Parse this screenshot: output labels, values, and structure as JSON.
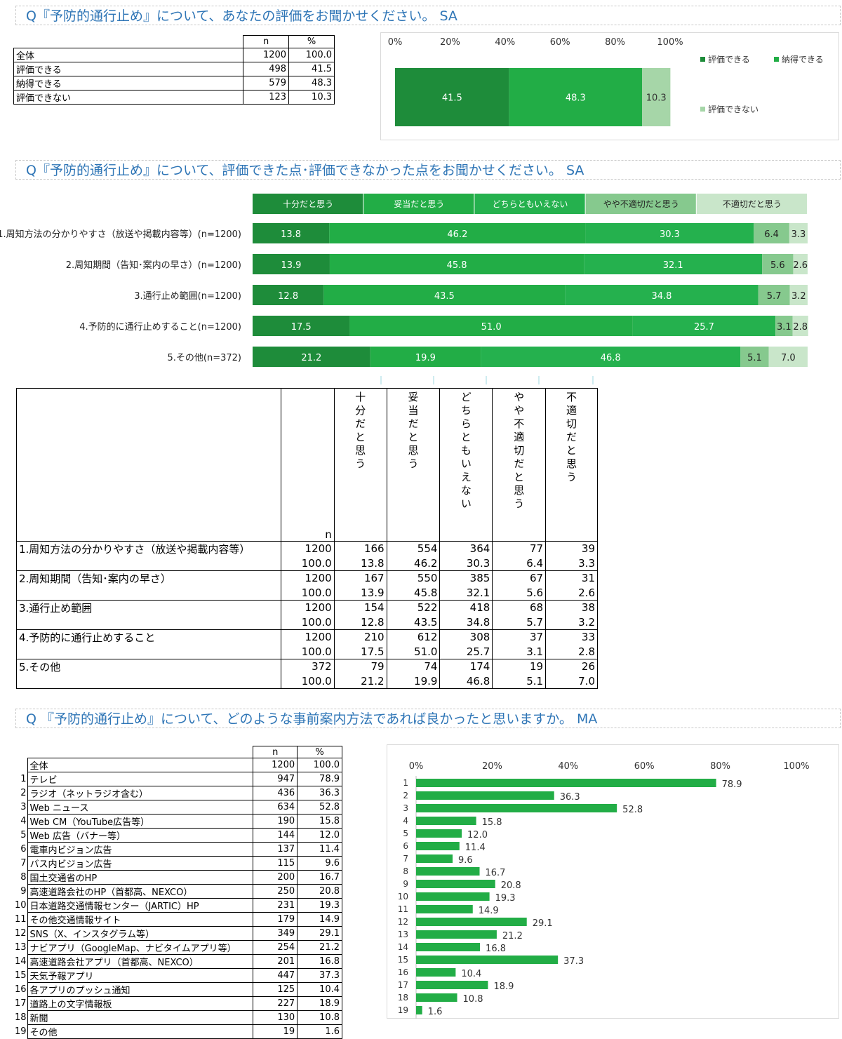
{
  "section1": {
    "title": "Q『予防的通行止め』について、あなたの評価をお聞かせください。 SA",
    "table": {
      "headers": [
        "n",
        "%"
      ],
      "rows": [
        {
          "label": "全体",
          "n": "1200",
          "pct": "100.0"
        },
        {
          "label": "評価できる",
          "n": "498",
          "pct": "41.5"
        },
        {
          "label": "納得できる",
          "n": "579",
          "pct": "48.3"
        },
        {
          "label": "評価できない",
          "n": "123",
          "pct": "10.3"
        }
      ]
    }
  },
  "section2": {
    "title": "Q『予防的通行止め』について、評価できた点･評価できなかった点をお聞かせください。 SA",
    "table": {
      "n_header": "n",
      "col_headers": [
        "十分だと思う",
        "妥当だと思う",
        "どちらともいえない",
        "やや不適切だと思う",
        "不適切だと思う"
      ],
      "rows": [
        {
          "label": "1.周知方法の分かりやすさ（放送や掲載内容等）",
          "n": "1200",
          "counts": [
            "166",
            "554",
            "364",
            "77",
            "39"
          ],
          "pct_total": "100.0",
          "pcts": [
            "13.8",
            "46.2",
            "30.3",
            "6.4",
            "3.3"
          ]
        },
        {
          "label": "2.周知期間（告知･案内の早さ）",
          "n": "1200",
          "counts": [
            "167",
            "550",
            "385",
            "67",
            "31"
          ],
          "pct_total": "100.0",
          "pcts": [
            "13.9",
            "45.8",
            "32.1",
            "5.6",
            "2.6"
          ]
        },
        {
          "label": "3.通行止め範囲",
          "n": "1200",
          "counts": [
            "154",
            "522",
            "418",
            "68",
            "38"
          ],
          "pct_total": "100.0",
          "pcts": [
            "12.8",
            "43.5",
            "34.8",
            "5.7",
            "3.2"
          ]
        },
        {
          "label": "4.予防的に通行止めすること",
          "n": "1200",
          "counts": [
            "210",
            "612",
            "308",
            "37",
            "33"
          ],
          "pct_total": "100.0",
          "pcts": [
            "17.5",
            "51.0",
            "25.7",
            "3.1",
            "2.8"
          ]
        },
        {
          "label": "5.その他",
          "n": "372",
          "counts": [
            "79",
            "74",
            "174",
            "19",
            "26"
          ],
          "pct_total": "100.0",
          "pcts": [
            "21.2",
            "19.9",
            "46.8",
            "5.1",
            "7.0"
          ]
        }
      ]
    }
  },
  "section3": {
    "title": "Q 『予防的通行止め』について、どのような事前案内方法であれば良かったと思いますか。 MA",
    "table": {
      "headers": [
        "n",
        "%"
      ],
      "total": {
        "label": "全体",
        "n": "1200",
        "pct": "100.0"
      },
      "rows": [
        {
          "no": "1",
          "label": "テレビ",
          "n": "947",
          "pct": "78.9"
        },
        {
          "no": "2",
          "label": "ラジオ（ネットラジオ含む）",
          "n": "436",
          "pct": "36.3"
        },
        {
          "no": "3",
          "label": "Web ニュース",
          "n": "634",
          "pct": "52.8"
        },
        {
          "no": "4",
          "label": "Web CM（YouTube広告等）",
          "n": "190",
          "pct": "15.8"
        },
        {
          "no": "5",
          "label": "Web 広告（バナー等）",
          "n": "144",
          "pct": "12.0"
        },
        {
          "no": "6",
          "label": "電車内ビジョン広告",
          "n": "137",
          "pct": "11.4"
        },
        {
          "no": "7",
          "label": "バス内ビジョン広告",
          "n": "115",
          "pct": "9.6"
        },
        {
          "no": "8",
          "label": "国土交通省のHP",
          "n": "200",
          "pct": "16.7"
        },
        {
          "no": "9",
          "label": "高速道路会社のHP（首都高、NEXCO）",
          "n": "250",
          "pct": "20.8"
        },
        {
          "no": "10",
          "label": "日本道路交通情報センター（JARTIC）HP",
          "n": "231",
          "pct": "19.3"
        },
        {
          "no": "11",
          "label": "その他交通情報サイト",
          "n": "179",
          "pct": "14.9"
        },
        {
          "no": "12",
          "label": "SNS（X、インスタグラム等）",
          "n": "349",
          "pct": "29.1"
        },
        {
          "no": "13",
          "label": "ナビアプリ（GoogleMap、ナビタイムアプリ等）",
          "n": "254",
          "pct": "21.2"
        },
        {
          "no": "14",
          "label": "高速道路会社アプリ（首都高、NEXCO）",
          "n": "201",
          "pct": "16.8"
        },
        {
          "no": "15",
          "label": "天気予報アプリ",
          "n": "447",
          "pct": "37.3"
        },
        {
          "no": "16",
          "label": "各アプリのプッシュ通知",
          "n": "125",
          "pct": "10.4"
        },
        {
          "no": "17",
          "label": "道路上の文字情報板",
          "n": "227",
          "pct": "18.9"
        },
        {
          "no": "18",
          "label": "新聞",
          "n": "130",
          "pct": "10.8"
        },
        {
          "no": "19",
          "label": "その他",
          "n": "19",
          "pct": "1.6"
        }
      ]
    }
  },
  "chart_data": [
    {
      "type": "bar",
      "stacked": true,
      "orientation": "horizontal",
      "x_ticks": [
        "0%",
        "20%",
        "40%",
        "60%",
        "80%",
        "100%"
      ],
      "xlim": [
        0,
        100
      ],
      "legend_position": "right",
      "series": [
        {
          "name": "評価できる",
          "values": [
            41.5
          ],
          "color": "#1e8c3a"
        },
        {
          "name": "納得できる",
          "values": [
            48.3
          ],
          "color": "#22ad46"
        },
        {
          "name": "評価できない",
          "values": [
            10.3
          ],
          "color": "#a6d6a8"
        }
      ]
    },
    {
      "type": "bar",
      "stacked": true,
      "orientation": "horizontal",
      "xlim": [
        0,
        100
      ],
      "legend_position": "top",
      "categories": [
        "1.周知方法の分かりやすさ（放送や掲載内容等）(n=1200)",
        "2.周知期間（告知･案内の早さ）(n=1200)",
        "3.通行止め範囲(n=1200)",
        "4.予防的に通行止めすること(n=1200)",
        "5.その他(n=372)"
      ],
      "series": [
        {
          "name": "十分だと思う",
          "values": [
            13.8,
            13.9,
            12.8,
            17.5,
            21.2
          ],
          "color": "#1e8c3a"
        },
        {
          "name": "妥当だと思う",
          "values": [
            46.2,
            45.8,
            43.5,
            51.0,
            19.9
          ],
          "color": "#22ad46"
        },
        {
          "name": "どちらともいえない",
          "values": [
            30.3,
            32.1,
            34.8,
            25.7,
            46.8
          ],
          "color": "#25b14e"
        },
        {
          "name": "やや不適切だと思う",
          "values": [
            6.4,
            5.6,
            5.7,
            3.1,
            5.1
          ],
          "color": "#86c98e"
        },
        {
          "name": "不適切だと思う",
          "values": [
            3.3,
            2.6,
            3.2,
            2.8,
            7.0
          ],
          "color": "#c9e6ca"
        }
      ]
    },
    {
      "type": "bar",
      "orientation": "horizontal",
      "x_ticks": [
        "0%",
        "20%",
        "40%",
        "60%",
        "80%",
        "100%"
      ],
      "xlim": [
        0,
        100
      ],
      "categories": [
        "1",
        "2",
        "3",
        "4",
        "5",
        "6",
        "7",
        "8",
        "9",
        "10",
        "11",
        "12",
        "13",
        "14",
        "15",
        "16",
        "17",
        "18",
        "19"
      ],
      "values": [
        78.9,
        36.3,
        52.8,
        15.8,
        12.0,
        11.4,
        9.6,
        16.7,
        20.8,
        19.3,
        14.9,
        29.1,
        21.2,
        16.8,
        37.3,
        10.4,
        18.9,
        10.8,
        1.6
      ],
      "color": "#22ad46"
    }
  ]
}
